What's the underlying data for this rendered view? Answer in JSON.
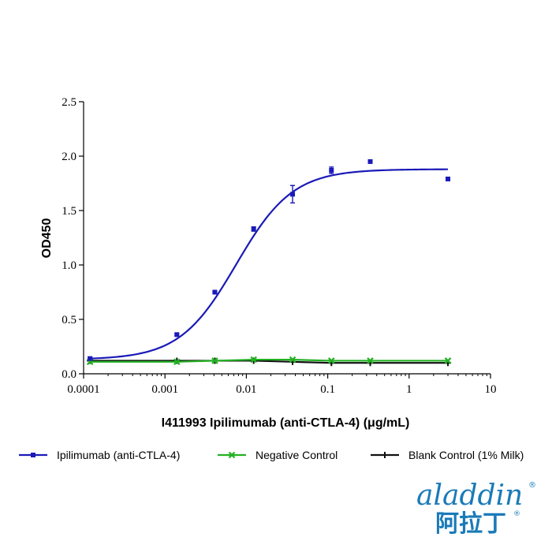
{
  "chart_data": {
    "type": "line",
    "title": "",
    "xlabel": "I411993 Ipilimumab (anti-CTLA-4) (μg/mL)",
    "ylabel": "OD450",
    "xscale": "log",
    "xlim": [
      0.0001,
      10
    ],
    "ylim": [
      0,
      2.5
    ],
    "x_ticks": [
      {
        "value": 0.0001,
        "label": "0.0001"
      },
      {
        "value": 0.001,
        "label": "0.001"
      },
      {
        "value": 0.01,
        "label": "0.01"
      },
      {
        "value": 0.1,
        "label": "0.1"
      },
      {
        "value": 1,
        "label": "1"
      },
      {
        "value": 10,
        "label": "10"
      }
    ],
    "y_ticks": [
      {
        "value": 0,
        "label": "0.0"
      },
      {
        "value": 0.5,
        "label": "0.5"
      },
      {
        "value": 1.0,
        "label": "1.0"
      },
      {
        "value": 1.5,
        "label": "1.5"
      },
      {
        "value": 2.0,
        "label": "2.0"
      },
      {
        "value": 2.5,
        "label": "2.5"
      }
    ],
    "grid": false,
    "legend_position": "bottom",
    "series": [
      {
        "name": "Ipilimumab (anti-CTLA-4)",
        "color": "#1a1ab8",
        "marker": "square",
        "fit": "4PL sigmoid",
        "fit_params": {
          "bottom": 0.13,
          "top": 1.88,
          "ec50": 0.0075,
          "hill": 1.25
        },
        "points": [
          {
            "x": 0.00012,
            "y": 0.14,
            "err": 0.01
          },
          {
            "x": 0.0014,
            "y": 0.36,
            "err": 0.01
          },
          {
            "x": 0.0041,
            "y": 0.75,
            "err": 0.01
          },
          {
            "x": 0.0123,
            "y": 1.33,
            "err": 0.02
          },
          {
            "x": 0.037,
            "y": 1.65,
            "err": 0.08
          },
          {
            "x": 0.111,
            "y": 1.87,
            "err": 0.03
          },
          {
            "x": 0.333,
            "y": 1.95,
            "err": 0.0
          },
          {
            "x": 3.0,
            "y": 1.79,
            "err": 0.0
          }
        ]
      },
      {
        "name": "Negative Control",
        "color": "#22b022",
        "marker": "x",
        "points": [
          {
            "x": 0.00012,
            "y": 0.11
          },
          {
            "x": 0.0014,
            "y": 0.11
          },
          {
            "x": 0.0041,
            "y": 0.12
          },
          {
            "x": 0.0123,
            "y": 0.13
          },
          {
            "x": 0.037,
            "y": 0.13
          },
          {
            "x": 0.111,
            "y": 0.12
          },
          {
            "x": 0.333,
            "y": 0.12
          },
          {
            "x": 3.0,
            "y": 0.12
          }
        ]
      },
      {
        "name": "Blank Control (1% Milk)",
        "color": "#111111",
        "marker": "plus",
        "points": [
          {
            "x": 0.00012,
            "y": 0.12
          },
          {
            "x": 0.0014,
            "y": 0.12
          },
          {
            "x": 0.0041,
            "y": 0.12
          },
          {
            "x": 0.0123,
            "y": 0.12
          },
          {
            "x": 0.037,
            "y": 0.11
          },
          {
            "x": 0.111,
            "y": 0.1
          },
          {
            "x": 0.333,
            "y": 0.1
          },
          {
            "x": 3.0,
            "y": 0.1
          }
        ]
      }
    ]
  },
  "logo": {
    "brand_latin": "aladdin",
    "brand_cjk": "阿拉丁",
    "registered_mark": "®",
    "color_main": "#1a7ab8",
    "color_accent": "#c9a100"
  }
}
